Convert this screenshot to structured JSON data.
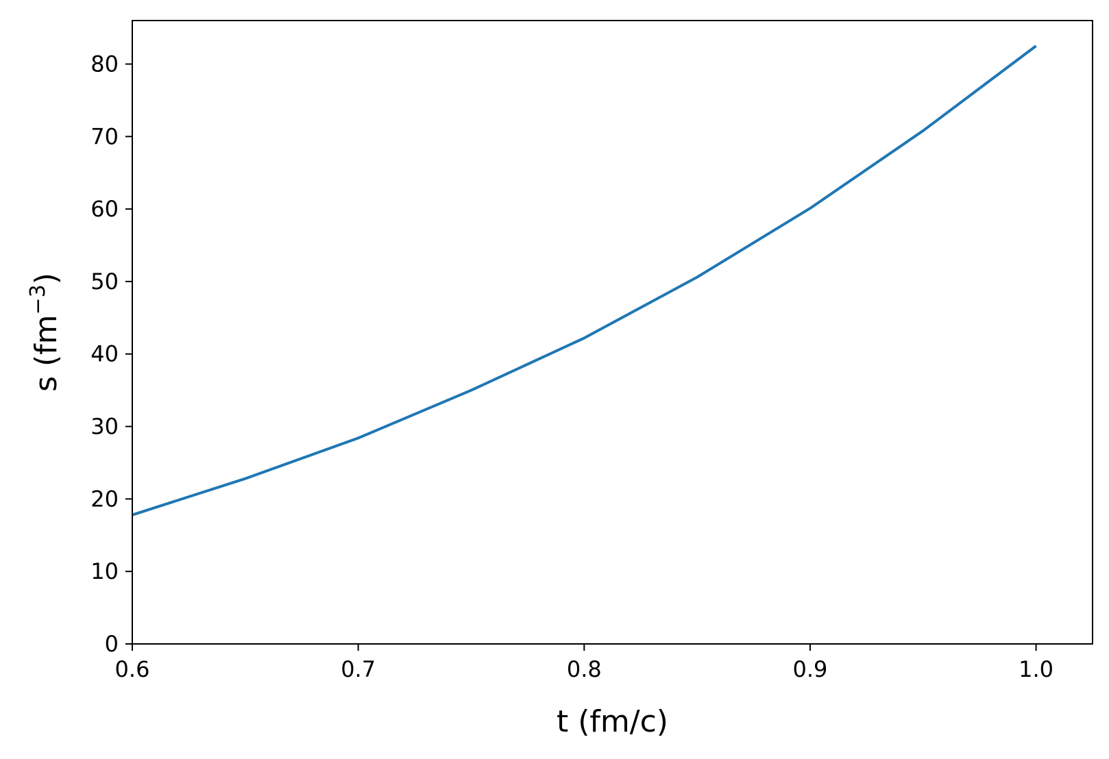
{
  "chart_data": {
    "type": "line",
    "title": "",
    "xlabel": "t (fm/c)",
    "ylabel_base": "s (fm",
    "ylabel_sup": "−3",
    "ylabel_close": ")",
    "xlim": [
      0.6,
      1.025
    ],
    "ylim": [
      0,
      86
    ],
    "xticks": [
      0.6,
      0.7,
      0.8,
      0.9,
      1.0
    ],
    "xtick_labels": [
      "0.6",
      "0.7",
      "0.8",
      "0.9",
      "1.0"
    ],
    "yticks": [
      0,
      10,
      20,
      30,
      40,
      50,
      60,
      70,
      80
    ],
    "ytick_labels": [
      "0",
      "10",
      "20",
      "30",
      "40",
      "50",
      "60",
      "70",
      "80"
    ],
    "grid": false,
    "series": [
      {
        "color": "#1f77b4",
        "x": [
          0.6,
          0.65,
          0.7,
          0.75,
          0.8,
          0.85,
          0.9,
          0.95,
          1.0
        ],
        "y": [
          17.8,
          22.8,
          28.4,
          35.0,
          42.2,
          50.6,
          60.1,
          70.8,
          82.5
        ]
      }
    ]
  }
}
